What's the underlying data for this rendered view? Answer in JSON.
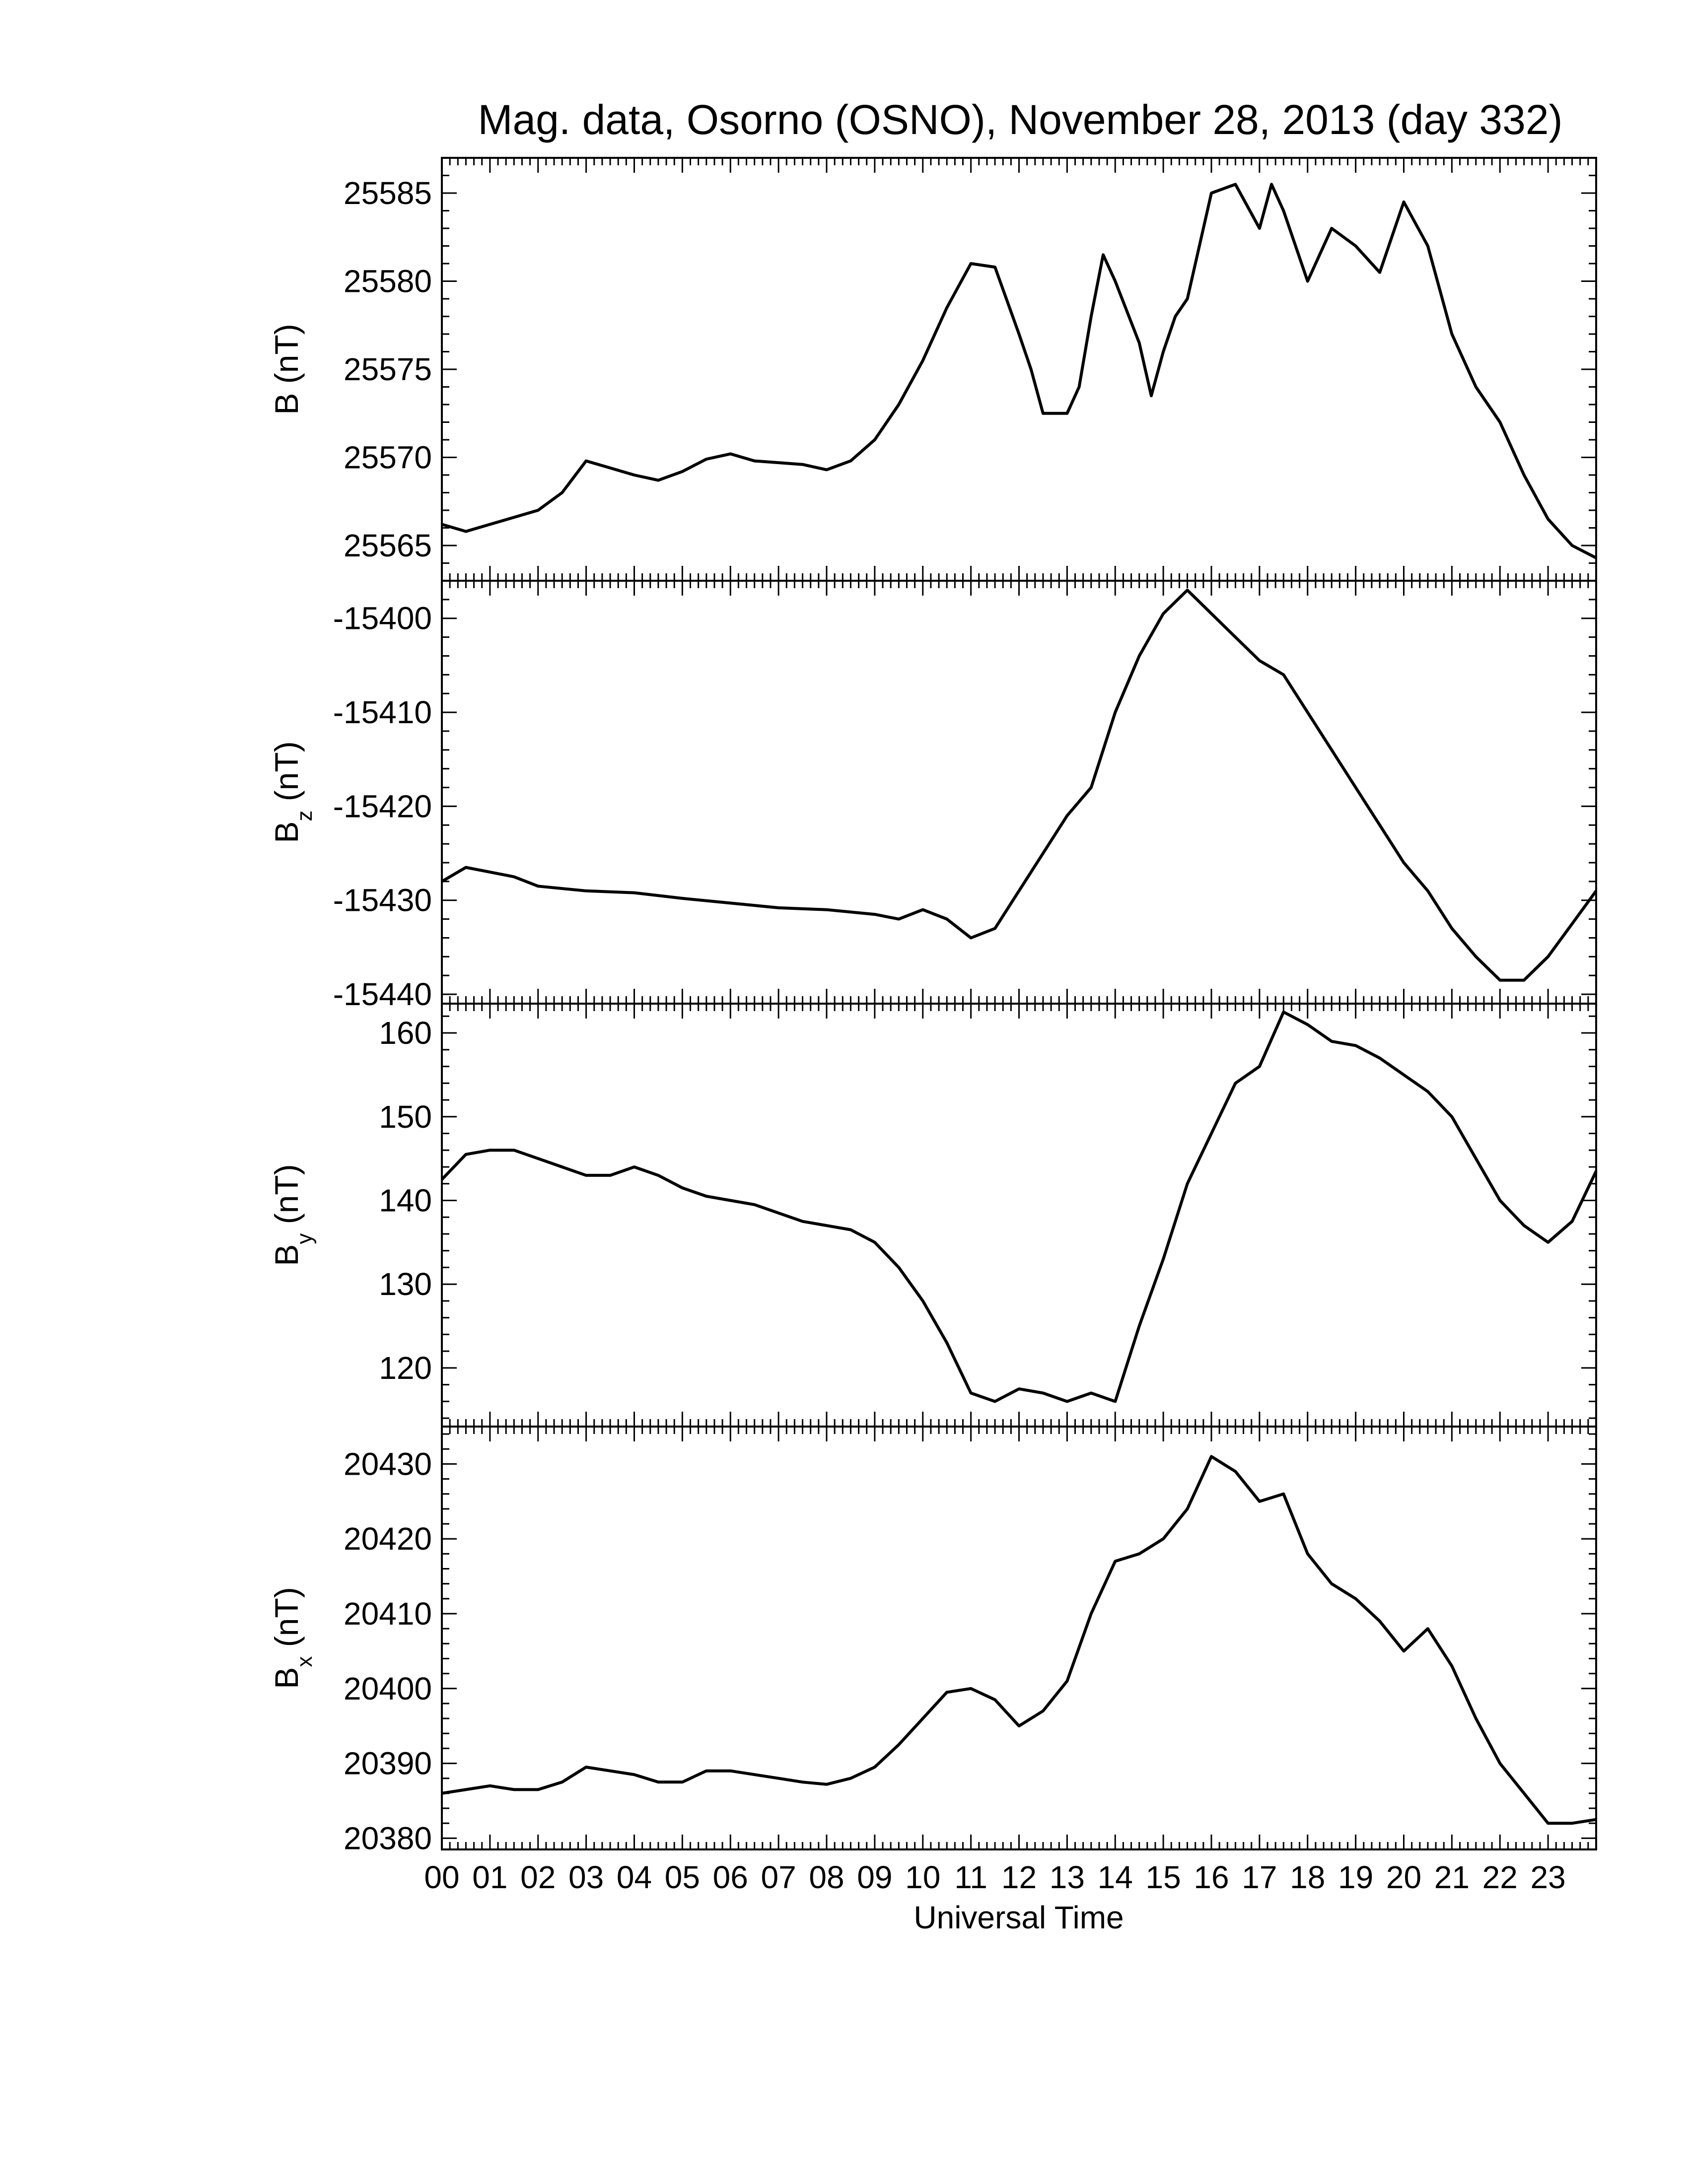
{
  "figure": {
    "title": "Mag. data, Osorno (OSNO), November 28, 2013 (day 332)",
    "xlabel": "Universal Time"
  },
  "chart_data": {
    "type": "line",
    "x_unit": "hours UT",
    "xlim": [
      0,
      24
    ],
    "x_ticks": [
      0,
      1,
      2,
      3,
      4,
      5,
      6,
      7,
      8,
      9,
      10,
      11,
      12,
      13,
      14,
      15,
      16,
      17,
      18,
      19,
      20,
      21,
      22,
      23
    ],
    "x_tick_labels": [
      "00",
      "01",
      "02",
      "03",
      "04",
      "05",
      "06",
      "07",
      "08",
      "09",
      "10",
      "11",
      "12",
      "13",
      "14",
      "15",
      "16",
      "17",
      "18",
      "19",
      "20",
      "21",
      "22",
      "23"
    ],
    "panels": [
      {
        "id": "B",
        "ylabel_main": "B",
        "ylabel_sub": "",
        "ylabel_unit": "(nT)",
        "ylim": [
          25563,
          25587
        ],
        "yticks": [
          25565,
          25570,
          25575,
          25580,
          25585
        ],
        "x": [
          0,
          0.5,
          1,
          1.5,
          2,
          2.5,
          3,
          3.5,
          4,
          4.5,
          5,
          5.5,
          6,
          6.5,
          7,
          7.5,
          8,
          8.5,
          9,
          9.5,
          10,
          10.5,
          11,
          11.5,
          12,
          12.25,
          12.5,
          13,
          13.25,
          13.5,
          13.75,
          14,
          14.5,
          14.75,
          15,
          15.25,
          15.5,
          16,
          16.5,
          17,
          17.25,
          17.5,
          18,
          18.5,
          19,
          19.5,
          20,
          20.5,
          20.75,
          21,
          21.5,
          22,
          22.5,
          23,
          23.5,
          24
        ],
        "y": [
          25566.2,
          25565.8,
          25566.2,
          25566.6,
          25567.0,
          25568.0,
          25569.8,
          25569.4,
          25569.0,
          25568.7,
          25569.2,
          25569.9,
          25570.2,
          25569.8,
          25569.7,
          25569.6,
          25569.3,
          25569.8,
          25571.0,
          25573.0,
          25575.5,
          25578.5,
          25581.0,
          25580.8,
          25577.0,
          25575.0,
          25572.5,
          25572.5,
          25574.0,
          25578.0,
          25581.5,
          25580.0,
          25576.5,
          25573.5,
          25576.0,
          25578.0,
          25579.0,
          25585.0,
          25585.5,
          25583.0,
          25585.5,
          25584.0,
          25580.0,
          25583.0,
          25582.0,
          25580.5,
          25584.5,
          25582.0,
          25579.5,
          25577.0,
          25574.0,
          25572.0,
          25569.0,
          25566.5,
          25565.0,
          25564.3
        ]
      },
      {
        "id": "Bz",
        "ylabel_main": "B",
        "ylabel_sub": "z",
        "ylabel_unit": "(nT)",
        "ylim": [
          -15441,
          -15396
        ],
        "yticks": [
          -15440,
          -15430,
          -15420,
          -15410,
          -15400
        ],
        "x": [
          0,
          0.5,
          1,
          1.5,
          2,
          3,
          4,
          5,
          6,
          7,
          8,
          9,
          9.5,
          10,
          10.5,
          11,
          11.5,
          12,
          12.5,
          13,
          13.5,
          14,
          14.5,
          15,
          15.5,
          16,
          16.5,
          17,
          17.5,
          18,
          18.5,
          19,
          19.5,
          20,
          20.5,
          21,
          21.5,
          22,
          22.5,
          23,
          23.5,
          24
        ],
        "y": [
          -15428.0,
          -15426.5,
          -15427.0,
          -15427.5,
          -15428.5,
          -15429.0,
          -15429.2,
          -15429.8,
          -15430.3,
          -15430.8,
          -15431.0,
          -15431.5,
          -15432.0,
          -15431.0,
          -15432.0,
          -15434.0,
          -15433.0,
          -15429.0,
          -15425.0,
          -15421.0,
          -15418.0,
          -15410.0,
          -15404.0,
          -15399.5,
          -15397.0,
          -15399.5,
          -15402.0,
          -15404.5,
          -15406.0,
          -15410.0,
          -15414.0,
          -15418.0,
          -15422.0,
          -15426.0,
          -15429.0,
          -15433.0,
          -15436.0,
          -15438.5,
          -15438.5,
          -15436.0,
          -15432.5,
          -15429.0
        ]
      },
      {
        "id": "By",
        "ylabel_main": "B",
        "ylabel_sub": "y",
        "ylabel_unit": "(nT)",
        "ylim": [
          113,
          163.5
        ],
        "yticks": [
          120,
          130,
          140,
          150,
          160
        ],
        "x": [
          0,
          0.5,
          1,
          1.5,
          2,
          2.5,
          3,
          3.5,
          4,
          4.5,
          5,
          5.5,
          6,
          6.5,
          7,
          7.5,
          8,
          8.5,
          9,
          9.5,
          10,
          10.5,
          11,
          11.5,
          12,
          12.5,
          13,
          13.5,
          14,
          14.5,
          15,
          15.5,
          16,
          16.5,
          17,
          17.5,
          18,
          18.5,
          19,
          19.5,
          20,
          20.5,
          21,
          21.5,
          22,
          22.5,
          23,
          23.5,
          24
        ],
        "y": [
          142.5,
          145.5,
          146.0,
          146.0,
          145.0,
          144.0,
          143.0,
          143.0,
          144.0,
          143.0,
          141.5,
          140.5,
          140.0,
          139.5,
          138.5,
          137.5,
          137.0,
          136.5,
          135.0,
          132.0,
          128.0,
          123.0,
          117.0,
          116.0,
          117.5,
          117.0,
          116.0,
          117.0,
          116.0,
          125.0,
          133.0,
          142.0,
          148.0,
          154.0,
          156.0,
          162.5,
          161.0,
          159.0,
          158.5,
          157.0,
          155.0,
          153.0,
          150.0,
          145.0,
          140.0,
          137.0,
          135.0,
          137.5,
          143.5
        ]
      },
      {
        "id": "Bx",
        "ylabel_main": "B",
        "ylabel_sub": "x",
        "ylabel_unit": "(nT)",
        "ylim": [
          20378.5,
          20435
        ],
        "yticks": [
          20380,
          20390,
          20400,
          20410,
          20420,
          20430
        ],
        "x": [
          0,
          0.5,
          1,
          1.5,
          2,
          2.5,
          3,
          3.5,
          4,
          4.5,
          5,
          5.5,
          6,
          6.5,
          7,
          7.5,
          8,
          8.5,
          9,
          9.5,
          10,
          10.5,
          11,
          11.5,
          12,
          12.5,
          13,
          13.5,
          14,
          14.5,
          15,
          15.5,
          16,
          16.5,
          17,
          17.5,
          18,
          18.5,
          19,
          19.5,
          20,
          20.5,
          21,
          21.5,
          22,
          22.5,
          23,
          23.5,
          24
        ],
        "y": [
          20386.0,
          20386.5,
          20387.0,
          20386.5,
          20386.5,
          20387.5,
          20389.5,
          20389.0,
          20388.5,
          20387.5,
          20387.5,
          20389.0,
          20389.0,
          20388.5,
          20388.0,
          20387.5,
          20387.2,
          20388.0,
          20389.5,
          20392.5,
          20396.0,
          20399.5,
          20400.0,
          20398.5,
          20395.0,
          20397.0,
          20401.0,
          20410.0,
          20417.0,
          20418.0,
          20420.0,
          20424.0,
          20431.0,
          20429.0,
          20425.0,
          20426.0,
          20418.0,
          20414.0,
          20412.0,
          20409.0,
          20405.0,
          20408.0,
          20403.0,
          20396.0,
          20390.0,
          20386.0,
          20382.0,
          20382.0,
          20382.5
        ]
      }
    ]
  }
}
